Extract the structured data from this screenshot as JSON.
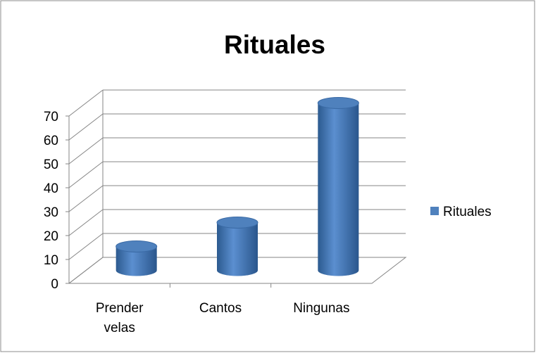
{
  "chart_data": {
    "type": "bar3d",
    "title": "Rituales",
    "categories": [
      "Prender velas",
      "Cantos",
      "Ningunas"
    ],
    "series": [
      {
        "name": "Rituales",
        "color": "#4f81bd",
        "values": [
          10,
          20,
          70
        ]
      }
    ],
    "ylim": [
      0,
      70
    ],
    "yticks": [
      0,
      10,
      20,
      30,
      40,
      50,
      60,
      70
    ],
    "grid": true,
    "legend": "right"
  }
}
